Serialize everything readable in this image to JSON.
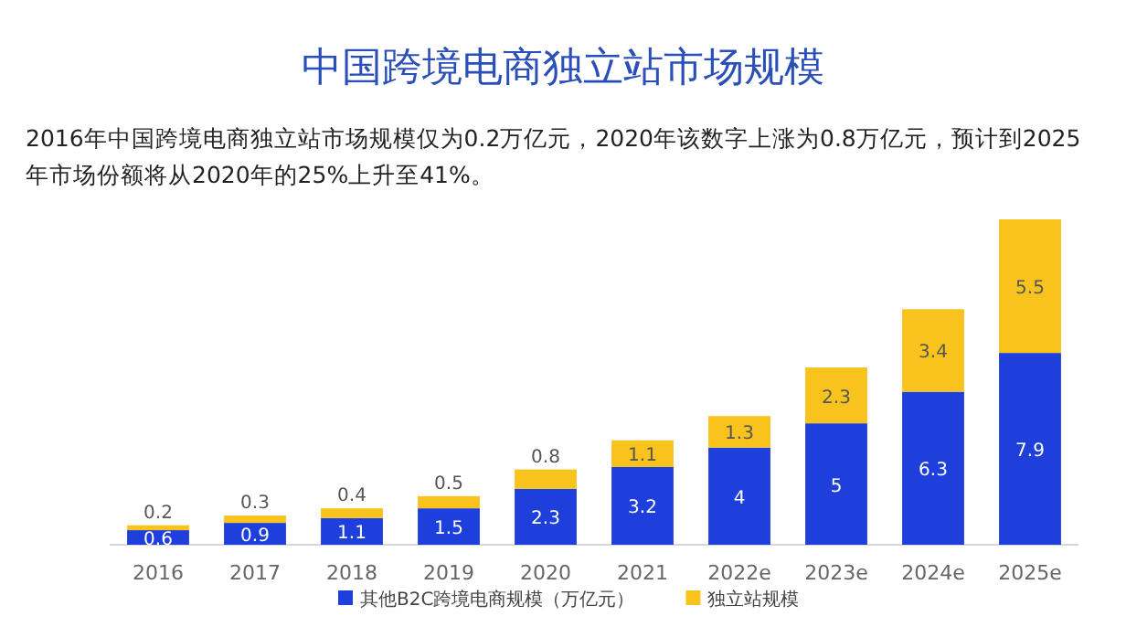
{
  "chart_data": {
    "type": "bar",
    "title": "中国跨境电商独立站市场规模",
    "subtitle": "2016年中国跨境电商独立站市场规模仅为0.2万亿元，2020年该数字上涨为0.8万亿元，预计到2025年市场份额将从2020年的25%上升至41%。",
    "categories": [
      "2016",
      "2017",
      "2018",
      "2019",
      "2020",
      "2021",
      "2022e",
      "2023e",
      "2024e",
      "2025e"
    ],
    "stacked": true,
    "data_labels": true,
    "legend": "bottom",
    "series": [
      {
        "name": "其他B2C跨境电商规模（万亿元）",
        "color": "#1f3fdc",
        "values": [
          0.6,
          0.9,
          1.1,
          1.5,
          2.3,
          3.2,
          4,
          5,
          6.3,
          7.9
        ]
      },
      {
        "name": "独立站规模",
        "color": "#f7c31c",
        "values": [
          0.2,
          0.3,
          0.4,
          0.5,
          0.8,
          1.1,
          1.3,
          2.3,
          3.4,
          5.5
        ]
      }
    ]
  }
}
